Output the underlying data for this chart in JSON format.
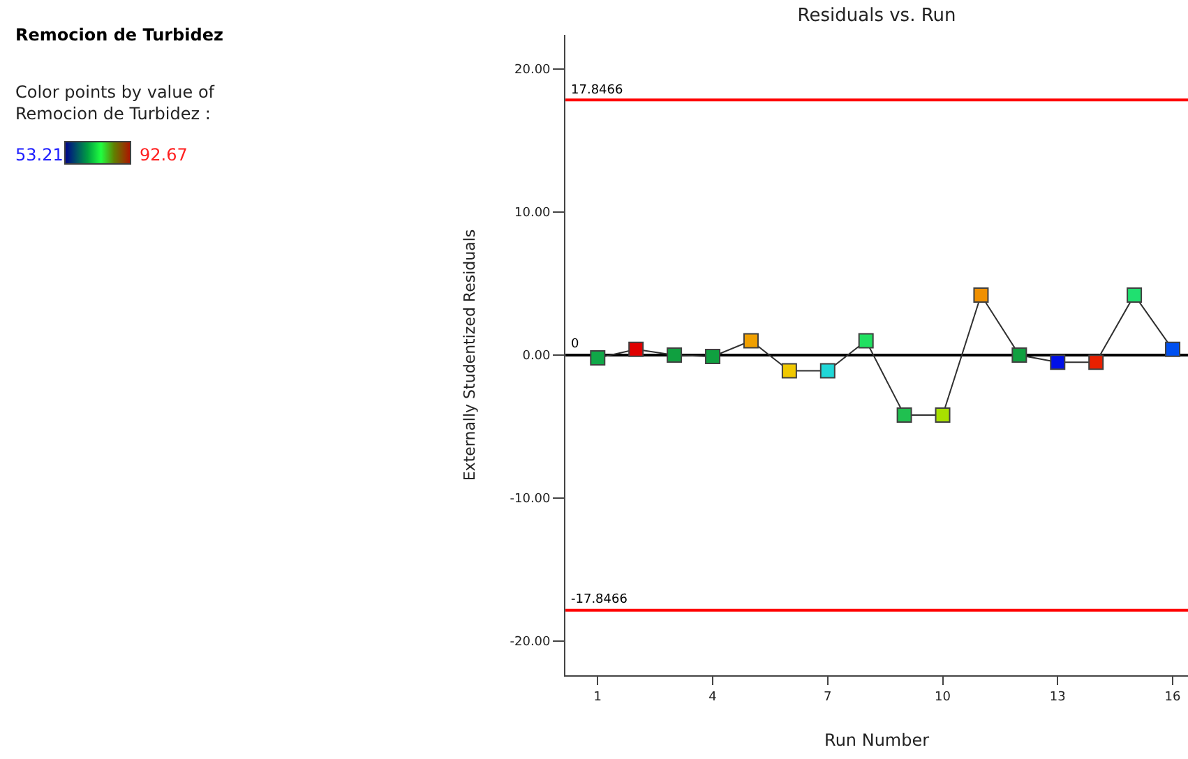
{
  "chart_data": {
    "type": "line",
    "title": "Residuals vs. Run",
    "xlabel": "Run Number",
    "ylabel": "Externally Studentized Residuals",
    "x": [
      1,
      2,
      3,
      4,
      5,
      6,
      7,
      8,
      9,
      10,
      11,
      12,
      13,
      14,
      15,
      16
    ],
    "series": [
      {
        "color": "#303030",
        "values": [
          -0.2,
          0.4,
          0.0,
          -0.1,
          1.0,
          -1.1,
          -1.1,
          1.0,
          -4.2,
          -4.2,
          4.2,
          0.0,
          -0.5,
          -0.5,
          4.2,
          0.4
        ],
        "colors": [
          "#10a848",
          "#e00000",
          "#10a040",
          "#10a040",
          "#f0a000",
          "#f0c800",
          "#20d8d8",
          "#20e060",
          "#20c050",
          "#a8e000",
          "#f09000",
          "#10a040",
          "#0010e8",
          "#e82000",
          "#20e070",
          "#0050f0"
        ]
      }
    ],
    "annotations": [
      "Remocion de Turbidez",
      "Color points by value of\nRemocion de Turbidez :",
      "53.21",
      "92.67"
    ],
    "marker": "square",
    "line_style": "solid",
    "grid": false,
    "xlim": [
      0.16,
      16.4
    ],
    "xticks": [
      1,
      4,
      7,
      10,
      13,
      16
    ],
    "ylim": [
      -22.4,
      22.4
    ],
    "yticks": [
      {
        "value": -20,
        "label": "-20.00"
      },
      {
        "value": -10,
        "label": "-10.00"
      },
      {
        "value": 0,
        "label": "0.00"
      },
      {
        "value": 10,
        "label": "10.00"
      },
      {
        "value": 20,
        "label": "20.00"
      }
    ],
    "ref_lines": [
      {
        "axis": "y",
        "value": 17.8466,
        "label": "17.8466",
        "color": "#ff0000"
      },
      {
        "axis": "y",
        "value": 0,
        "label": "0",
        "color": "#000000"
      },
      {
        "axis": "y",
        "value": -17.8466,
        "label": "-17.8466",
        "color": "#ff0000"
      }
    ]
  }
}
